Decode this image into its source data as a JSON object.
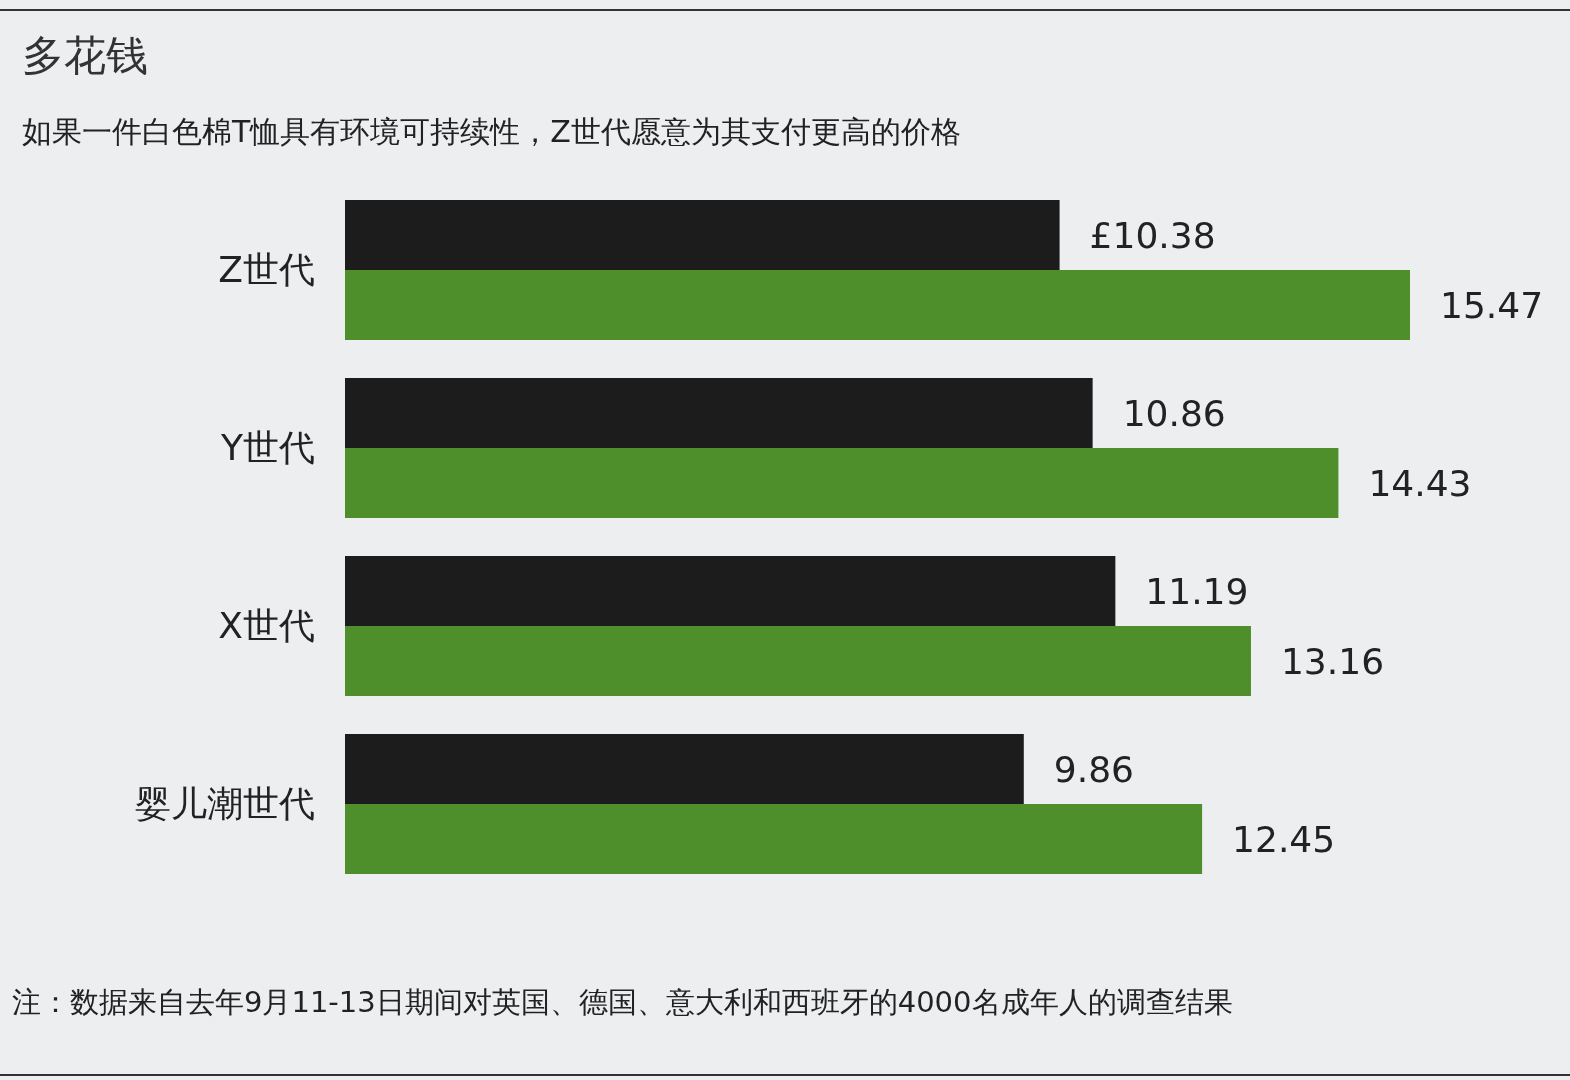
{
  "chart_data": {
    "type": "bar",
    "orientation": "horizontal",
    "title": "多花钱",
    "subtitle": "如果一件白色棉T恤具有环境可持续性，Z世代愿意为其支付更高的价格",
    "categories": [
      "Z世代",
      "Y世代",
      "X世代",
      "婴儿潮世代"
    ],
    "series": [
      {
        "color": "#1c1c1c",
        "values": [
          10.38,
          10.86,
          11.19,
          9.86
        ],
        "value_labels": [
          "£10.38",
          "10.86",
          "11.19",
          "9.86"
        ]
      },
      {
        "color": "#4f8f2b",
        "values": [
          15.47,
          14.43,
          13.16,
          12.45
        ],
        "value_labels": [
          "15.47",
          "14.43",
          "13.16",
          "12.45"
        ]
      }
    ],
    "annotations": [
      "注：数据来自去年9月11-13日期间对英国、德国、意大利和西班牙的4000名成年人的调查结果"
    ]
  }
}
